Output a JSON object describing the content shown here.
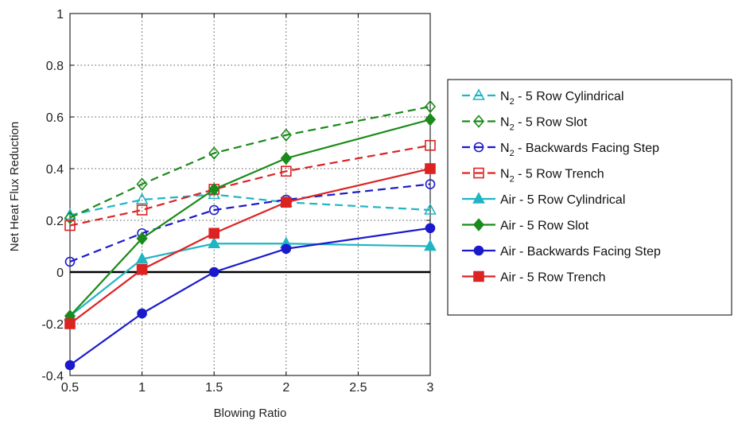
{
  "chart_data": {
    "type": "line",
    "xlabel": "Blowing Ratio",
    "ylabel": "Net Heat Flux Reduction",
    "xlim": [
      0.5,
      3
    ],
    "ylim": [
      -0.4,
      1
    ],
    "xticks": [
      0.5,
      1,
      1.5,
      2,
      2.5,
      3
    ],
    "xtick_labels": [
      "0.5",
      "1",
      "1.5",
      "2",
      "2.5",
      "3"
    ],
    "yticks": [
      -0.4,
      -0.2,
      0,
      0.2,
      0.4,
      0.6,
      0.8,
      1
    ],
    "ytick_labels": [
      "-0.4",
      "-0.2",
      "0",
      "0.2",
      "0.4",
      "0.6",
      "0.8",
      "1"
    ],
    "grid": true,
    "legend_position": "right",
    "reference_line": {
      "y": 0,
      "x": [
        0.5,
        3
      ]
    },
    "x": [
      0.5,
      1,
      1.5,
      2,
      3
    ],
    "series": [
      {
        "prefix": "N",
        "sub": "2",
        "suffix": " - 5 Row Cylindrical",
        "color": "#1fb5c3",
        "dash": true,
        "marker": "triangle",
        "filled": false,
        "values": [
          0.22,
          0.28,
          0.3,
          0.27,
          0.24
        ]
      },
      {
        "prefix": "N",
        "sub": "2",
        "suffix": " - 5 Row Slot",
        "color": "#1a8a1a",
        "dash": true,
        "marker": "diamond",
        "filled": false,
        "values": [
          0.21,
          0.34,
          0.46,
          0.53,
          0.64
        ]
      },
      {
        "prefix": "N",
        "sub": "2",
        "suffix": " - Backwards Facing Step",
        "color": "#1a1acc",
        "dash": true,
        "marker": "circle",
        "filled": false,
        "values": [
          0.04,
          0.15,
          0.24,
          0.28,
          0.34
        ]
      },
      {
        "prefix": "N",
        "sub": "2",
        "suffix": " - 5 Row Trench",
        "color": "#dd2222",
        "dash": true,
        "marker": "square",
        "filled": false,
        "values": [
          0.18,
          0.24,
          0.32,
          0.39,
          0.49
        ]
      },
      {
        "prefix": "Air",
        "sub": "",
        "suffix": " - 5 Row Cylindrical",
        "color": "#1fb5c3",
        "dash": false,
        "marker": "triangle",
        "filled": true,
        "values": [
          -0.17,
          0.05,
          0.11,
          0.11,
          0.1
        ]
      },
      {
        "prefix": "Air",
        "sub": "",
        "suffix": " - 5 Row Slot",
        "color": "#1a8a1a",
        "dash": false,
        "marker": "diamond",
        "filled": true,
        "values": [
          -0.17,
          0.13,
          0.32,
          0.44,
          0.59
        ]
      },
      {
        "prefix": "Air",
        "sub": "",
        "suffix": " - Backwards Facing Step",
        "color": "#1a1acc",
        "dash": false,
        "marker": "circle",
        "filled": true,
        "values": [
          -0.36,
          -0.16,
          0.0,
          0.09,
          0.17
        ]
      },
      {
        "prefix": "Air",
        "sub": "",
        "suffix": " - 5 Row Trench",
        "color": "#dd2222",
        "dash": false,
        "marker": "square",
        "filled": true,
        "values": [
          -0.2,
          0.01,
          0.15,
          0.27,
          0.4
        ]
      }
    ]
  }
}
